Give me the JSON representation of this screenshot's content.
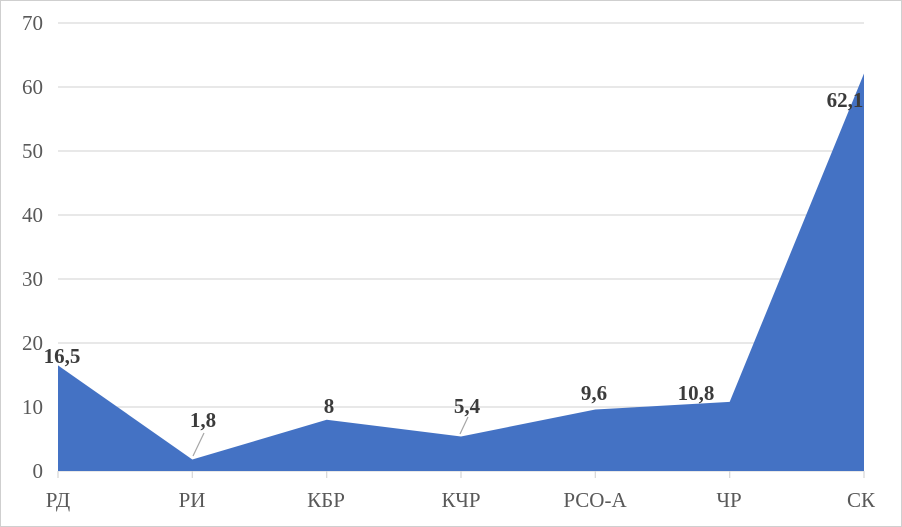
{
  "chart_data": {
    "type": "area",
    "title": "",
    "xlabel": "",
    "ylabel": "",
    "categories": [
      "РД",
      "РИ",
      "КБР",
      "КЧР",
      "РСО-А",
      "ЧР",
      "СК"
    ],
    "values": [
      16.5,
      1.8,
      8,
      5.4,
      9.6,
      10.8,
      62.1
    ],
    "data_labels": [
      "16,5",
      "1,8",
      "8",
      "5,4",
      "9,6",
      "10,8",
      "62,1"
    ],
    "ylim": [
      0,
      70
    ],
    "y_ticks": [
      0,
      10,
      20,
      30,
      40,
      50,
      60,
      70
    ],
    "y_tick_labels_top_to_bottom": [
      "70",
      "60",
      "50",
      "40",
      "30",
      "20",
      "10",
      "0"
    ],
    "grid": "horizontal",
    "legend": "none",
    "colors": {
      "area_fill": "#4472C4",
      "gridline": "#D9D9D9",
      "axis_line": "#D9D9D9",
      "tick_label": "#595959",
      "data_label": "#3B3B3B",
      "leader_line": "#A6A6A6"
    }
  }
}
